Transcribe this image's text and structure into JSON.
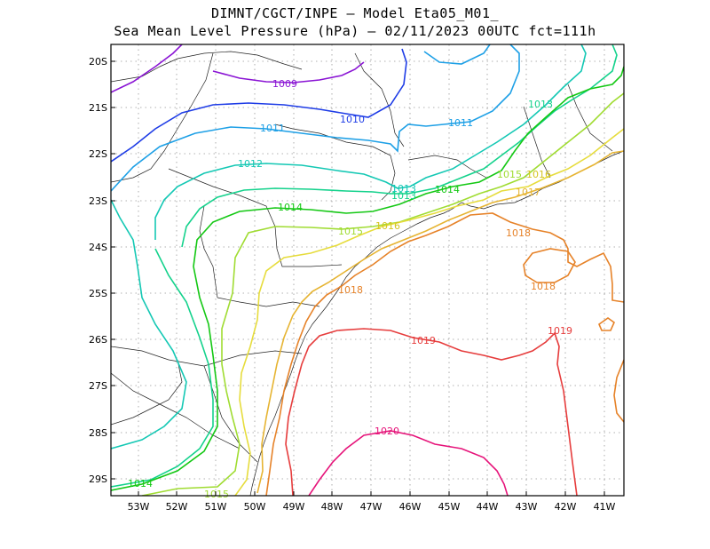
{
  "title_line1": "DIMNT/CGCT/INPE –  Model Eta05_M01_",
  "title_line2": "Sea Mean Level Pressure (hPa) – 02/11/2023 00UTC fct=111h",
  "lat_labels": [
    "20S",
    "21S",
    "22S",
    "23S",
    "24S",
    "25S",
    "26S",
    "27S",
    "28S",
    "29S"
  ],
  "lon_labels": [
    "53W",
    "52W",
    "51W",
    "50W",
    "49W",
    "48W",
    "47W",
    "46W",
    "45W",
    "44W",
    "43W",
    "42W",
    "41W"
  ],
  "contour_labels": {
    "c1009": "1009",
    "c1010": "1010",
    "c1011a": "1011",
    "c1011b": "1011",
    "c1012": "1012",
    "c1013a": "1013",
    "c1013b": "1013",
    "c1013c": "1013",
    "c1014a": "1014",
    "c1014b": "1014",
    "c1014c": "1014",
    "c1015a": "1015",
    "c1015b": "1015",
    "c1015c": "1015",
    "c1016a": "1016",
    "c1016b": "1016",
    "c1017": "1017",
    "c1018a": "1018",
    "c1018b": "1018",
    "c1018c": "1018",
    "c1019a": "1019",
    "c1019b": "1019",
    "c1020": "1020"
  },
  "colors": {
    "c1009": "#8a14d4",
    "c1010": "#1e3ce6",
    "c1011": "#1ea0e6",
    "c1012": "#14c8b4",
    "c1013": "#14d28c",
    "c1014": "#14c814",
    "c1015": "#a0dc32",
    "c1016": "#e6dc3c",
    "c1017": "#e6b432",
    "c1018": "#e68228",
    "c1019": "#e63c3c",
    "c1020": "#e6147a"
  }
}
